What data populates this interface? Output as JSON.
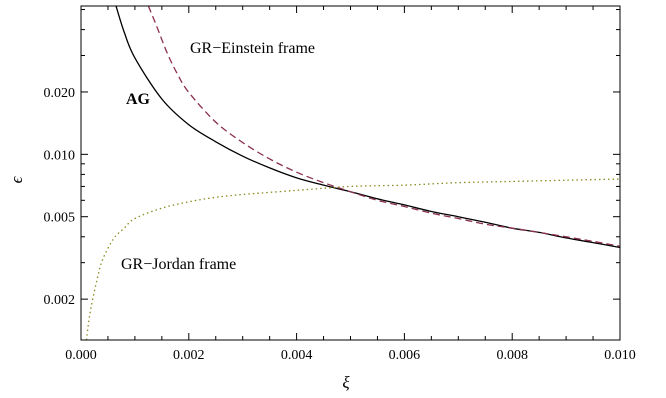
{
  "chart_data": {
    "type": "line",
    "title": "",
    "xlabel": "ξ",
    "ylabel": "ϵ",
    "xscale": "linear",
    "yscale": "log",
    "xlim": [
      0.0,
      0.01
    ],
    "ylim": [
      0.00127,
      0.052
    ],
    "grid": false,
    "x_ticks": [
      "0.000",
      "0.002",
      "0.004",
      "0.006",
      "0.008",
      "0.010"
    ],
    "x_tick_values": [
      0.0,
      0.002,
      0.004,
      0.006,
      0.008,
      0.01
    ],
    "y_ticks": [
      "0.002",
      "0.005",
      "0.010",
      "0.020"
    ],
    "y_tick_values": [
      0.002,
      0.005,
      0.01,
      0.02
    ],
    "series": [
      {
        "name": "AG",
        "color": "#000000",
        "dash": "solid",
        "x": [
          0.00065,
          0.0008,
          0.001,
          0.0015,
          0.002,
          0.0025,
          0.003,
          0.0035,
          0.004,
          0.0045,
          0.005,
          0.0055,
          0.006,
          0.0065,
          0.007,
          0.0075,
          0.008,
          0.0085,
          0.009,
          0.0095,
          0.01
        ],
        "y": [
          0.052,
          0.039,
          0.0292,
          0.0185,
          0.0139,
          0.0115,
          0.0098,
          0.0086,
          0.0077,
          0.0071,
          0.0066,
          0.0061,
          0.0057,
          0.0053,
          0.005,
          0.0047,
          0.0044,
          0.0042,
          0.00395,
          0.00375,
          0.00355
        ]
      },
      {
        "name": "GR−Einstein frame",
        "color": "#8b2f4f",
        "dash": "dashed",
        "x": [
          0.00125,
          0.0014,
          0.0016,
          0.0018,
          0.002,
          0.0025,
          0.003,
          0.0035,
          0.004,
          0.0045,
          0.005,
          0.0055,
          0.006,
          0.0065,
          0.007,
          0.0075,
          0.008,
          0.0085,
          0.009,
          0.0095,
          0.01
        ],
        "y": [
          0.052,
          0.0418,
          0.0308,
          0.0241,
          0.0199,
          0.0143,
          0.0114,
          0.0095,
          0.0082,
          0.0073,
          0.0066,
          0.006,
          0.0056,
          0.0052,
          0.0049,
          0.0046,
          0.0044,
          0.0042,
          0.004,
          0.0038,
          0.0036
        ]
      },
      {
        "name": "GR−Jordan frame",
        "color": "#8a8a22",
        "dash": "dotted",
        "x": [
          0.0001,
          0.00015,
          0.0002,
          0.0003,
          0.0004,
          0.0006,
          0.0008,
          0.001,
          0.0015,
          0.002,
          0.0025,
          0.003,
          0.004,
          0.005,
          0.006,
          0.007,
          0.008,
          0.009,
          0.01
        ],
        "y": [
          0.00127,
          0.0016,
          0.0019,
          0.0025,
          0.0031,
          0.0039,
          0.0044,
          0.0049,
          0.0055,
          0.0059,
          0.0062,
          0.0064,
          0.0067,
          0.007,
          0.0071,
          0.0073,
          0.0074,
          0.0075,
          0.0076
        ]
      }
    ],
    "annotations": [
      {
        "text": "AG",
        "series": "AG",
        "bold": true
      },
      {
        "text": "GR−Einstein frame",
        "series": "GR−Einstein frame",
        "bold": false
      },
      {
        "text": "GR−Jordan frame",
        "series": "GR−Jordan frame",
        "bold": false
      }
    ]
  }
}
